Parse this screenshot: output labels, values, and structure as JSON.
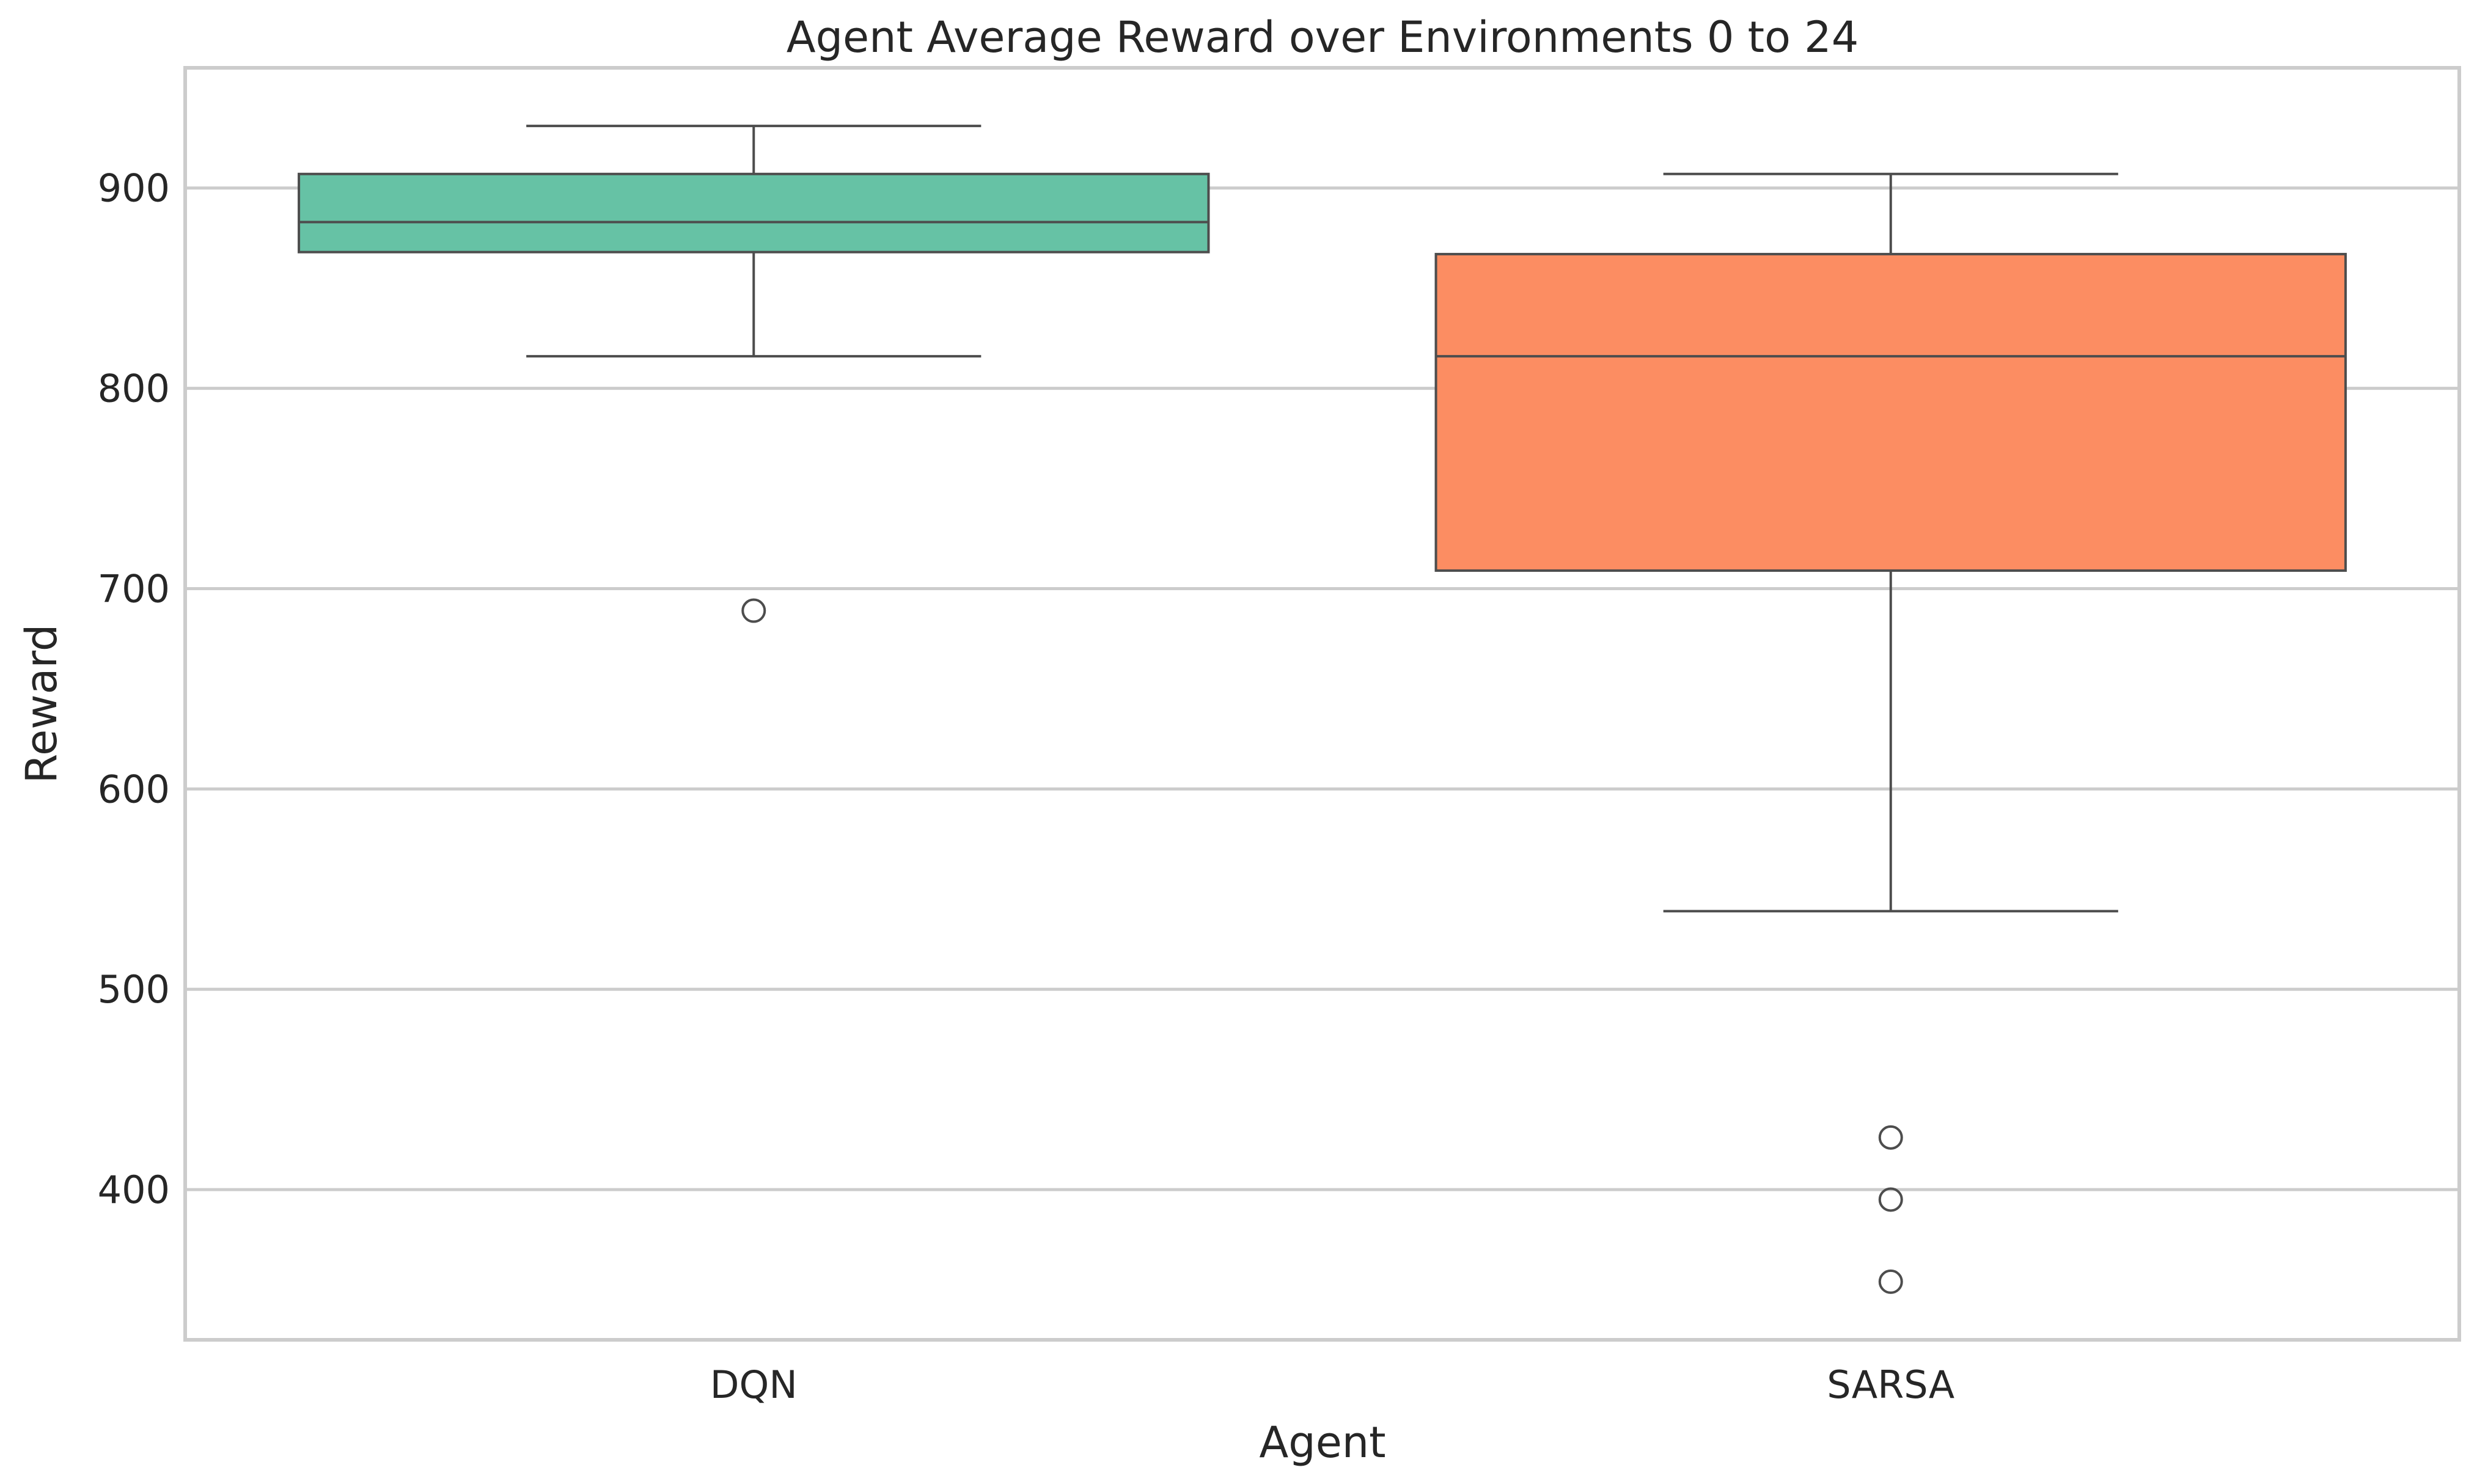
{
  "chart_data": {
    "type": "box",
    "title": "Agent Average Reward over Environments 0 to 24",
    "xlabel": "Agent",
    "ylabel": "Reward",
    "ylim": [
      325,
      960
    ],
    "yticks": [
      400,
      500,
      600,
      700,
      800,
      900
    ],
    "grid": true,
    "categories": [
      "DQN",
      "SARSA"
    ],
    "boxes": [
      {
        "category": "DQN",
        "color": "#66c2a5",
        "whisker_low": 816,
        "q1": 868,
        "median": 883,
        "q3": 907,
        "whisker_high": 931,
        "outliers": [
          689
        ]
      },
      {
        "category": "SARSA",
        "color": "#fc8d62",
        "whisker_low": 539,
        "q1": 709,
        "median": 816,
        "q3": 867,
        "whisker_high": 907,
        "outliers": [
          426,
          395,
          354
        ]
      }
    ]
  }
}
